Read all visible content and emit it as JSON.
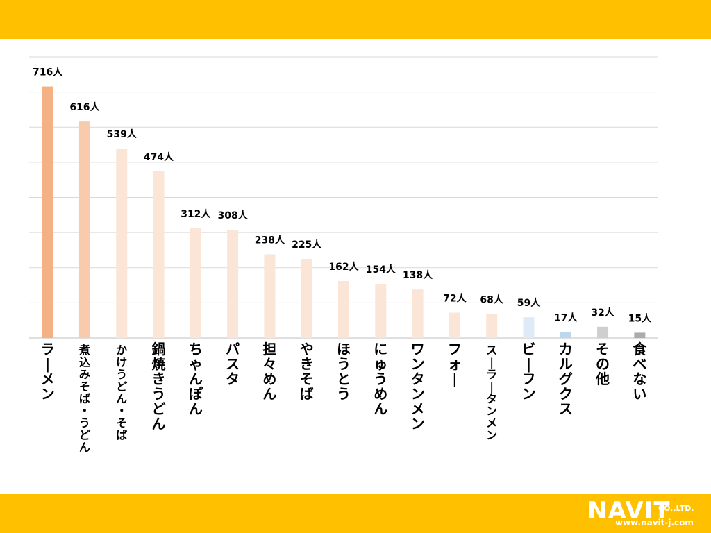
{
  "chart_data": {
    "type": "bar",
    "title": "",
    "xlabel": "",
    "ylabel": "",
    "ylim": [
      0,
      800
    ],
    "grid": true,
    "categories": [
      "ラーメン",
      "煮込みそば・うどん",
      "かけうどん・そば",
      "鍋焼きうどん",
      "ちゃんぽん",
      "パスタ",
      "担々めん",
      "やきそば",
      "ほうとう",
      "にゅうめん",
      "ワンタンメン",
      "フォー",
      "スーラータンメン",
      "ビーフン",
      "カルグクス",
      "その他",
      "食べない"
    ],
    "values": [
      716,
      616,
      539,
      474,
      312,
      308,
      238,
      225,
      162,
      154,
      138,
      72,
      68,
      59,
      17,
      32,
      15
    ],
    "data_labels": [
      "716人",
      "616人",
      "539人",
      "474人",
      "312人",
      "308人",
      "238人",
      "225人",
      "162人",
      "154人",
      "138人",
      "72人",
      "68人",
      "59人",
      "17人",
      "32人",
      "15人"
    ],
    "colors": [
      "#F4B183",
      "#F8CBAD",
      "#FBE5D6",
      "#FBE5D6",
      "#FBE5D6",
      "#FBE5D6",
      "#FBE5D6",
      "#FBE5D6",
      "#FBE5D6",
      "#FBE5D6",
      "#FBE5D6",
      "#FBE5D6",
      "#FBE5D6",
      "#DEEBF7",
      "#BDD7EE",
      "#D0CECE",
      "#AEAAAA"
    ]
  },
  "logo": {
    "main": "NAVIT",
    "suffix": "CO.,LTD.",
    "url": "www.navit-j.com"
  }
}
